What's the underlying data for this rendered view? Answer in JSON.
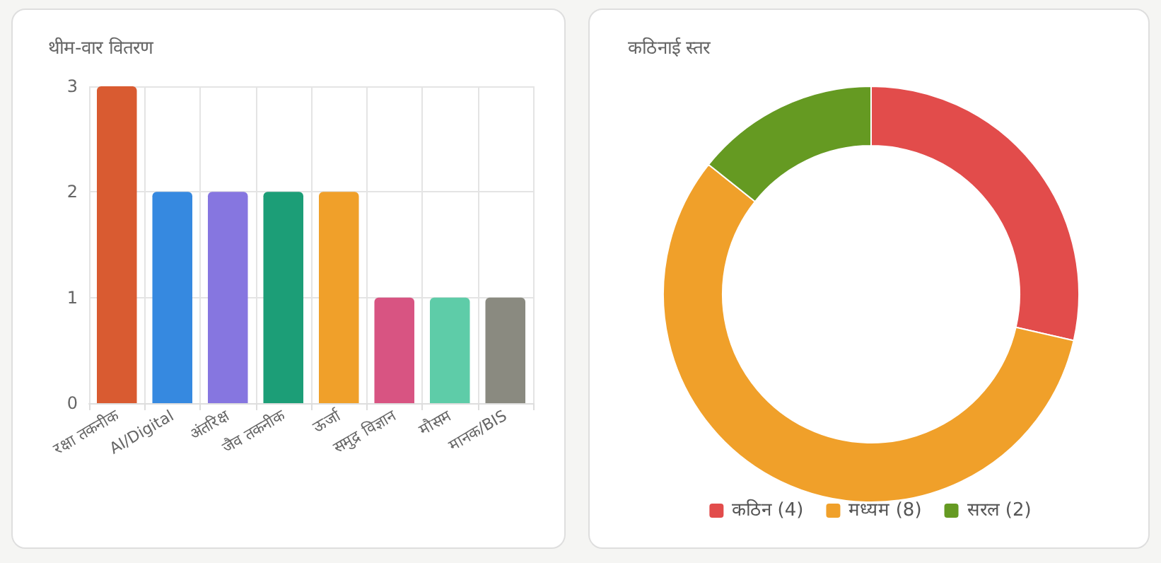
{
  "chart_data": [
    {
      "type": "bar",
      "title": "थीम-वार वितरण",
      "categories": [
        "रक्षा तकनीक",
        "AI/Digital",
        "अंतरिक्ष",
        "जैव तकनीक",
        "ऊर्जा",
        "समुद्र विज्ञान",
        "मौसम",
        "मानक/BIS"
      ],
      "values": [
        3,
        2,
        2,
        2,
        2,
        1,
        1,
        1
      ],
      "colors": [
        "#d95b31",
        "#3689e0",
        "#8676e0",
        "#1c9e77",
        "#f0a02a",
        "#d85482",
        "#5ecca8",
        "#8a8a80"
      ],
      "ylim": [
        0,
        3
      ],
      "yticks": [
        0,
        1,
        2,
        3
      ],
      "grid": true,
      "legend": false
    },
    {
      "type": "donut",
      "title": "कठिनाई स्तर",
      "categories": [
        "कठिन (4)",
        "मध्यम (8)",
        "सरल (2)"
      ],
      "values": [
        4,
        8,
        2
      ],
      "colors": [
        "#e24c4b",
        "#f0a02a",
        "#659a22"
      ],
      "legend": "bottom"
    }
  ]
}
